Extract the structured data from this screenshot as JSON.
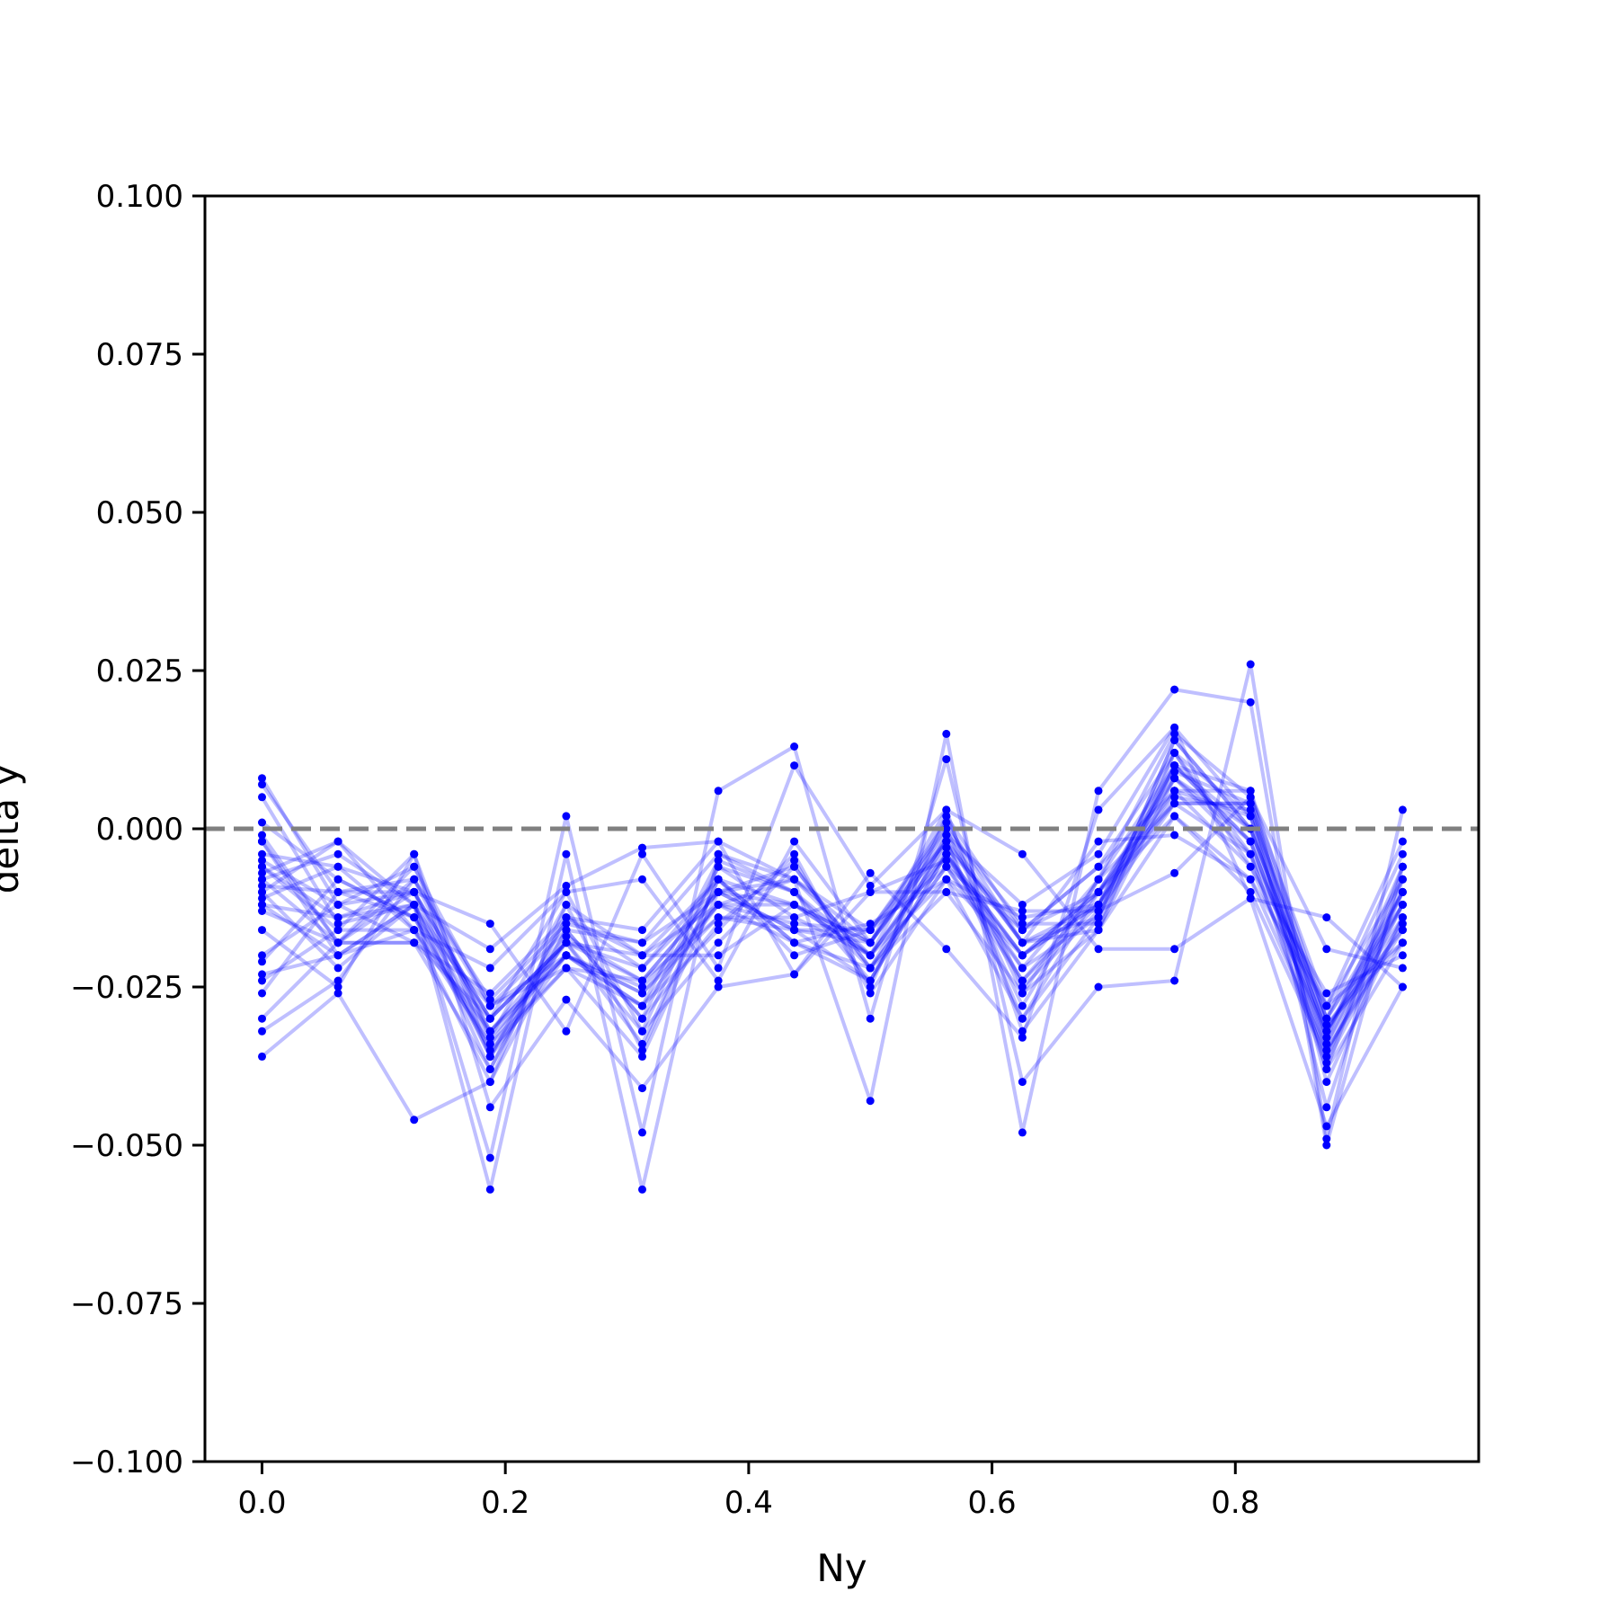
{
  "chart_data": {
    "type": "line",
    "title": "",
    "xlabel": "Ny",
    "ylabel": "delta y",
    "xlim": [
      -0.0469,
      1.0
    ],
    "ylim": [
      -0.1,
      0.1
    ],
    "x_ticks": [
      0.0,
      0.2,
      0.4,
      0.6,
      0.8
    ],
    "x_tick_labels": [
      "0.0",
      "0.2",
      "0.4",
      "0.6",
      "0.8"
    ],
    "y_ticks": [
      0.1,
      0.075,
      0.05,
      0.025,
      0.0,
      -0.025,
      -0.05,
      -0.075,
      -0.1
    ],
    "y_tick_labels": [
      "0.100",
      "0.075",
      "0.050",
      "0.025",
      "0.000",
      "−0.025",
      "−0.050",
      "−0.075",
      "−0.100"
    ],
    "reference_line": {
      "y": 0.0,
      "style": "dashed",
      "color": "#808080"
    },
    "series_color": "#0000ff",
    "grid": false,
    "legend": "none",
    "x": [
      0.0,
      0.0625,
      0.125,
      0.1875,
      0.25,
      0.3125,
      0.375,
      0.4375,
      0.5,
      0.5625,
      0.625,
      0.6875,
      0.75,
      0.8125,
      0.875,
      0.9375
    ],
    "series": [
      {
        "values": [
          0.008,
          -0.012,
          -0.01,
          -0.03,
          -0.018,
          -0.022,
          -0.008,
          -0.012,
          -0.018,
          -0.002,
          -0.018,
          -0.012,
          0.005,
          0.003,
          -0.03,
          -0.012
        ]
      },
      {
        "values": [
          0.007,
          -0.01,
          -0.008,
          -0.027,
          -0.015,
          -0.018,
          -0.01,
          -0.008,
          -0.02,
          -0.004,
          -0.02,
          -0.01,
          0.008,
          0.0,
          -0.032,
          -0.01
        ]
      },
      {
        "values": [
          0.005,
          -0.015,
          -0.012,
          -0.033,
          -0.02,
          -0.025,
          -0.012,
          -0.015,
          -0.016,
          0.0,
          -0.015,
          -0.015,
          0.01,
          -0.002,
          -0.035,
          -0.015
        ]
      },
      {
        "values": [
          0.001,
          -0.008,
          -0.014,
          -0.035,
          -0.022,
          -0.028,
          -0.005,
          -0.01,
          -0.022,
          -0.006,
          -0.022,
          -0.008,
          0.015,
          0.005,
          -0.028,
          -0.008
        ]
      },
      {
        "values": [
          -0.001,
          -0.018,
          -0.006,
          -0.028,
          -0.016,
          -0.03,
          -0.015,
          -0.005,
          -0.025,
          0.002,
          -0.025,
          -0.013,
          0.004,
          -0.004,
          -0.038,
          -0.018
        ]
      },
      {
        "values": [
          -0.002,
          -0.02,
          -0.016,
          -0.04,
          -0.012,
          -0.035,
          -0.008,
          -0.018,
          -0.015,
          -0.008,
          -0.03,
          -0.01,
          0.009,
          0.004,
          -0.033,
          -0.006
        ]
      },
      {
        "values": [
          -0.004,
          -0.006,
          -0.01,
          -0.032,
          -0.018,
          -0.02,
          -0.02,
          -0.012,
          -0.02,
          -0.003,
          -0.016,
          -0.006,
          0.012,
          -0.006,
          -0.026,
          -0.02
        ]
      },
      {
        "values": [
          -0.005,
          -0.012,
          -0.018,
          -0.026,
          -0.014,
          -0.016,
          -0.002,
          -0.008,
          -0.018,
          0.003,
          -0.032,
          -0.016,
          0.002,
          -0.01,
          -0.036,
          -0.01
        ]
      },
      {
        "values": [
          -0.006,
          -0.016,
          -0.004,
          -0.036,
          -0.02,
          -0.026,
          -0.012,
          -0.018,
          -0.024,
          -0.001,
          -0.012,
          -0.004,
          0.016,
          0.002,
          -0.03,
          -0.004
        ]
      },
      {
        "values": [
          -0.007,
          -0.002,
          -0.012,
          -0.03,
          -0.01,
          -0.032,
          -0.006,
          -0.014,
          -0.01,
          -0.005,
          -0.02,
          -0.012,
          0.006,
          0.006,
          -0.04,
          -0.014
        ]
      },
      {
        "values": [
          -0.008,
          -0.018,
          -0.008,
          -0.028,
          -0.022,
          -0.036,
          -0.01,
          -0.006,
          -0.022,
          -0.002,
          -0.028,
          -0.008,
          0.01,
          -0.002,
          -0.034,
          -0.012
        ]
      },
      {
        "values": [
          -0.009,
          -0.01,
          -0.014,
          -0.034,
          -0.018,
          -0.024,
          -0.014,
          -0.016,
          -0.016,
          0.001,
          -0.018,
          -0.014,
          0.014,
          0.0,
          -0.031,
          -0.016
        ]
      },
      {
        "values": [
          -0.01,
          -0.022,
          -0.012,
          -0.038,
          -0.016,
          -0.018,
          -0.004,
          -0.01,
          -0.02,
          -0.004,
          -0.024,
          -0.01,
          0.004,
          0.004,
          -0.044,
          -0.008
        ]
      },
      {
        "values": [
          -0.011,
          -0.006,
          -0.016,
          -0.032,
          -0.02,
          -0.028,
          -0.016,
          -0.004,
          -0.026,
          -0.008,
          -0.014,
          -0.012,
          0.008,
          -0.004,
          -0.028,
          -0.018
        ]
      },
      {
        "values": [
          -0.012,
          -0.014,
          -0.01,
          -0.036,
          -0.014,
          -0.022,
          -0.01,
          -0.012,
          -0.018,
          0.0,
          -0.026,
          -0.016,
          0.012,
          0.002,
          -0.038,
          -0.006
        ]
      },
      {
        "values": [
          -0.013,
          -0.018,
          -0.018,
          -0.03,
          -0.018,
          -0.034,
          -0.008,
          -0.018,
          -0.022,
          -0.006,
          -0.016,
          -0.006,
          0.006,
          -0.006,
          -0.032,
          -0.014
        ]
      },
      {
        "values": [
          -0.02,
          -0.012,
          -0.006,
          -0.033,
          -0.012,
          -0.02,
          -0.012,
          -0.008,
          -0.016,
          -0.002,
          -0.03,
          -0.014,
          0.01,
          0.006,
          -0.03,
          -0.01
        ]
      },
      {
        "values": [
          -0.021,
          -0.008,
          -0.014,
          -0.028,
          -0.02,
          -0.026,
          -0.014,
          -0.014,
          -0.02,
          -0.008,
          -0.02,
          -0.01,
          0.002,
          -0.008,
          -0.035,
          -0.016
        ]
      },
      {
        "values": [
          -0.023,
          -0.02,
          -0.012,
          -0.036,
          -0.016,
          -0.03,
          -0.006,
          -0.01,
          -0.024,
          -0.004,
          -0.022,
          -0.014,
          0.014,
          0.0,
          -0.036,
          -0.012
        ]
      },
      {
        "values": [
          -0.024,
          -0.016,
          -0.016,
          -0.034,
          -0.022,
          -0.024,
          -0.01,
          -0.016,
          -0.018,
          -0.002,
          -0.018,
          -0.016,
          0.008,
          -0.002,
          -0.033,
          -0.008
        ]
      },
      {
        "values": [
          -0.026,
          -0.01,
          -0.01,
          -0.03,
          -0.018,
          -0.032,
          -0.018,
          -0.006,
          -0.022,
          -0.01,
          -0.026,
          -0.008,
          0.004,
          0.004,
          -0.031,
          -0.018
        ]
      },
      {
        "values": [
          -0.03,
          -0.018,
          -0.018,
          -0.038,
          -0.014,
          -0.02,
          -0.008,
          -0.02,
          -0.016,
          -0.006,
          -0.024,
          -0.012,
          0.012,
          -0.004,
          -0.037,
          -0.014
        ]
      },
      {
        "values": [
          -0.032,
          -0.024,
          -0.008,
          -0.032,
          -0.02,
          -0.028,
          -0.012,
          -0.012,
          -0.02,
          0.002,
          -0.016,
          -0.01,
          0.006,
          0.002,
          -0.034,
          -0.01
        ]
      },
      {
        "values": [
          -0.036,
          -0.026,
          -0.046,
          -0.04,
          -0.017,
          -0.024,
          -0.01,
          -0.016,
          -0.024,
          -0.004,
          -0.02,
          -0.012,
          0.01,
          0.0,
          -0.032,
          -0.012
        ]
      },
      {
        "values": [
          -0.008,
          -0.004,
          -0.012,
          -0.057,
          -0.004,
          -0.057,
          -0.004,
          -0.008,
          -0.043,
          0.015,
          -0.048,
          0.006,
          0.022,
          0.02,
          -0.05,
          -0.006
        ]
      },
      {
        "values": [
          -0.012,
          -0.02,
          -0.012,
          -0.052,
          0.002,
          -0.048,
          0.006,
          0.013,
          -0.03,
          0.011,
          -0.04,
          -0.025,
          -0.024,
          0.026,
          -0.049,
          0.003
        ]
      },
      {
        "values": [
          -0.016,
          -0.025,
          -0.004,
          -0.044,
          -0.027,
          -0.041,
          -0.025,
          -0.023,
          -0.007,
          -0.019,
          -0.033,
          0.003,
          0.016,
          -0.011,
          -0.047,
          -0.025
        ]
      },
      {
        "values": [
          -0.002,
          -0.018,
          -0.01,
          -0.015,
          -0.032,
          -0.004,
          -0.022,
          0.01,
          -0.009,
          0.003,
          -0.004,
          -0.019,
          -0.019,
          -0.011,
          -0.014,
          -0.025
        ]
      },
      {
        "values": [
          -0.006,
          -0.014,
          -0.012,
          -0.019,
          -0.009,
          -0.003,
          -0.002,
          -0.023,
          -0.01,
          -0.01,
          -0.013,
          -0.013,
          -0.007,
          0.005,
          -0.019,
          -0.022
        ]
      },
      {
        "values": [
          -0.01,
          -0.002,
          -0.016,
          -0.022,
          -0.01,
          -0.008,
          -0.024,
          -0.002,
          -0.018,
          -0.001,
          -0.018,
          -0.002,
          -0.001,
          -0.008,
          -0.028,
          -0.002
        ]
      }
    ]
  }
}
